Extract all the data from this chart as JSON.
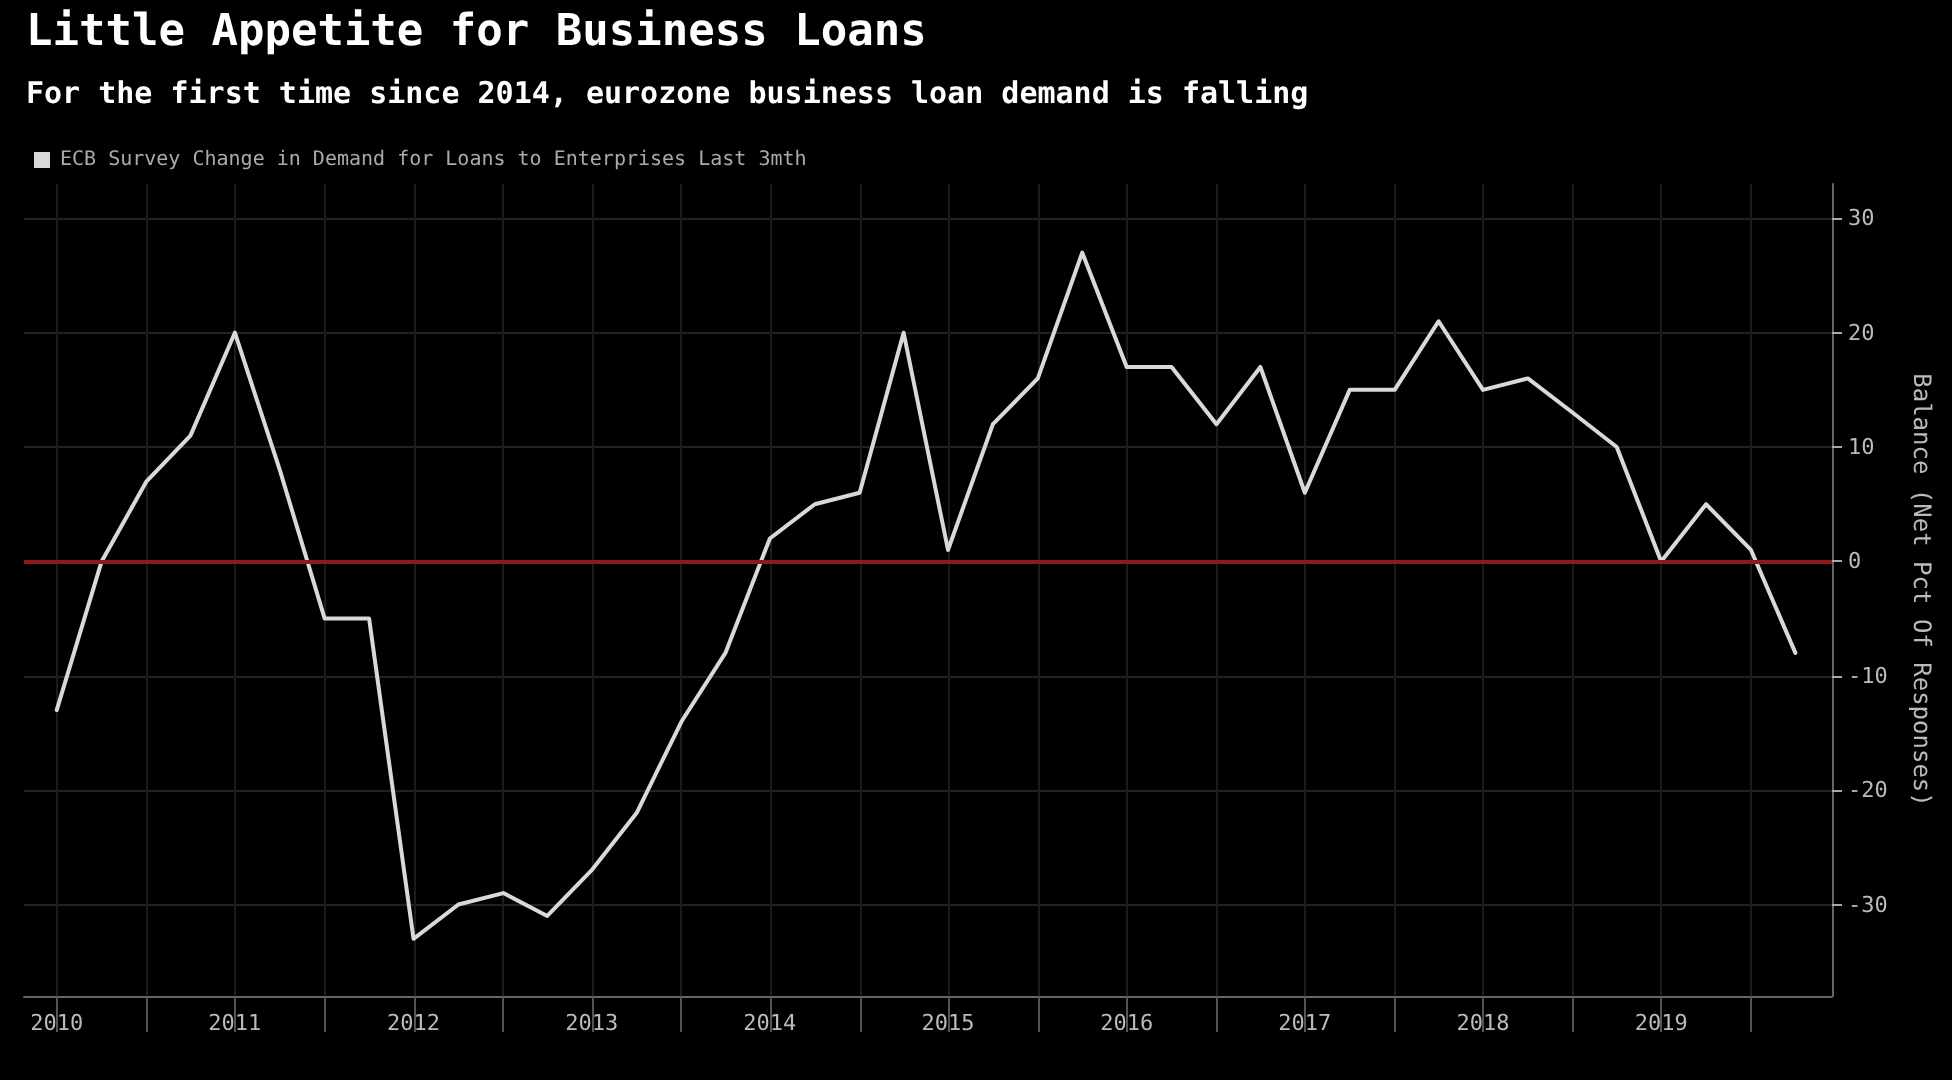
{
  "chart_data": {
    "type": "line",
    "title": "Little Appetite for Business Loans",
    "subtitle": "For the first time since 2014, eurozone business loan demand is falling",
    "ylabel": "Balance (Net Pct Of Responses)",
    "x": [
      "2010-07-01",
      "2010-10-01",
      "2011-01-01",
      "2011-04-01",
      "2011-07-01",
      "2011-10-01",
      "2012-01-01",
      "2012-04-01",
      "2012-07-01",
      "2012-10-01",
      "2013-01-01",
      "2013-04-01",
      "2013-07-01",
      "2013-10-01",
      "2014-01-01",
      "2014-04-01",
      "2014-07-01",
      "2014-10-01",
      "2015-01-01",
      "2015-04-01",
      "2015-07-01",
      "2015-10-01",
      "2016-01-01",
      "2016-04-01",
      "2016-07-01",
      "2016-10-01",
      "2017-01-01",
      "2017-04-01",
      "2017-07-01",
      "2017-10-01",
      "2018-01-01",
      "2018-04-01",
      "2018-07-01",
      "2018-10-01",
      "2019-01-01",
      "2019-04-01",
      "2019-07-01",
      "2019-10-01",
      "2020-01-01",
      "2020-04-01"
    ],
    "series": [
      {
        "name": "ECB Survey Change in Demand for Loans to Enterprises Last 3mth",
        "color": "#d9d9d9",
        "values": [
          -13,
          0,
          7,
          11,
          20,
          8,
          -5,
          -5,
          -33,
          -30,
          -29,
          -31,
          -27,
          -22,
          -14,
          -8,
          2,
          5,
          6,
          20,
          1,
          12,
          16,
          27,
          17,
          17,
          12,
          17,
          6,
          15,
          15,
          21,
          15,
          16,
          13,
          10,
          0,
          5,
          1,
          -8
        ]
      }
    ],
    "xlim": [
      "2010-04-25",
      "2020-06-15"
    ],
    "xticks": [
      {
        "value": "2010-07-01",
        "label": "2010"
      },
      {
        "value": "2011-01-01",
        "label": null
      },
      {
        "value": "2011-07-01",
        "label": "2011"
      },
      {
        "value": "2012-01-01",
        "label": null
      },
      {
        "value": "2012-07-01",
        "label": "2012"
      },
      {
        "value": "2013-01-01",
        "label": null
      },
      {
        "value": "2013-07-01",
        "label": "2013"
      },
      {
        "value": "2014-01-01",
        "label": null
      },
      {
        "value": "2014-07-01",
        "label": "2014"
      },
      {
        "value": "2015-01-01",
        "label": null
      },
      {
        "value": "2015-07-01",
        "label": "2015"
      },
      {
        "value": "2016-01-01",
        "label": null
      },
      {
        "value": "2016-07-01",
        "label": "2016"
      },
      {
        "value": "2017-01-01",
        "label": null
      },
      {
        "value": "2017-07-01",
        "label": "2017"
      },
      {
        "value": "2018-01-01",
        "label": null
      },
      {
        "value": "2018-07-01",
        "label": "2018"
      },
      {
        "value": "2019-01-01",
        "label": null
      },
      {
        "value": "2019-07-01",
        "label": "2019"
      },
      {
        "value": "2020-01-01",
        "label": null
      }
    ],
    "ylim": [
      -38,
      33
    ],
    "yticks": [
      -30,
      -20,
      -10,
      0,
      10,
      20,
      30
    ],
    "ref_lines": [
      {
        "axis": "y",
        "value": 0,
        "color": "#8b1a1a"
      }
    ],
    "grid": true,
    "legend": "top left",
    "marker": "none",
    "line_style": "solid"
  }
}
